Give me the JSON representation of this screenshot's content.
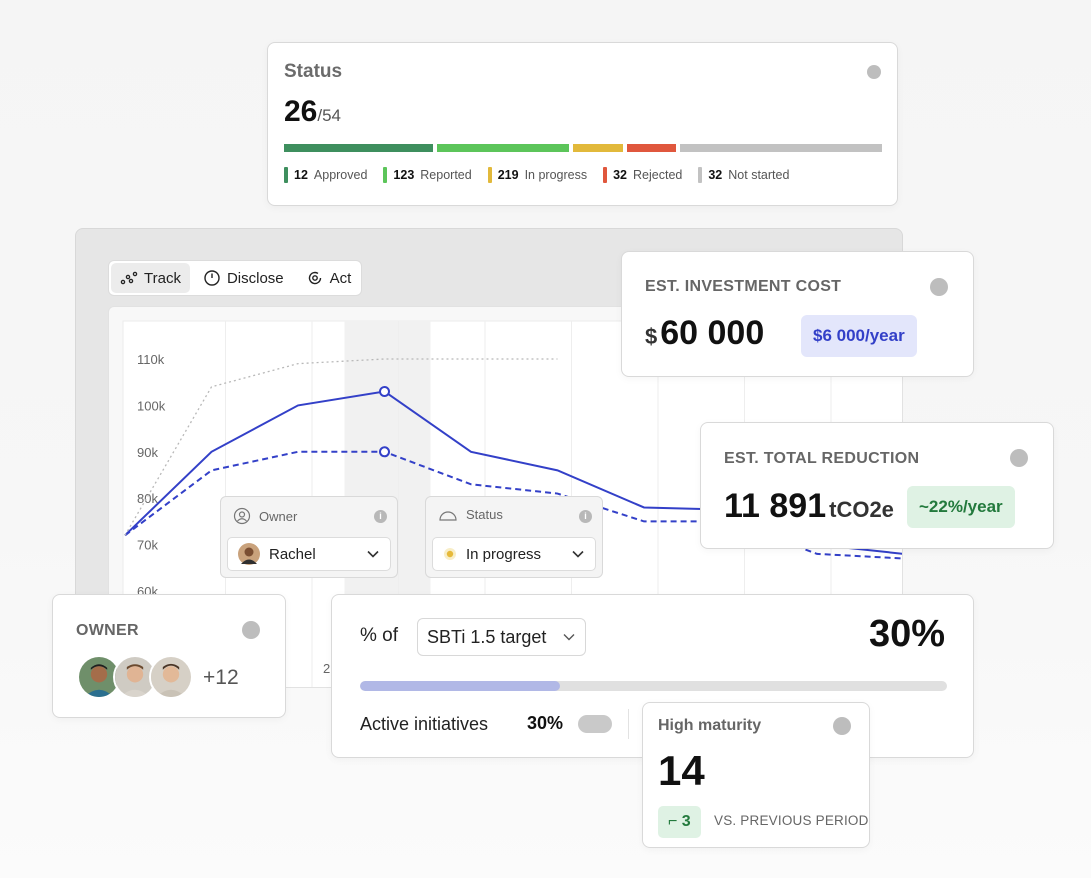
{
  "status_card": {
    "title": "Status",
    "current": "26",
    "total": "/54",
    "segments": [
      {
        "count": "12",
        "label": "Approved",
        "color": "#3e8f5e"
      },
      {
        "count": "123",
        "label": "Reported",
        "color": "#5cc55a"
      },
      {
        "count": "219",
        "label": "In progress",
        "color": "#e2b93b"
      },
      {
        "count": "32",
        "label": "Rejected",
        "color": "#e0573d"
      },
      {
        "count": "32",
        "label": "Not started",
        "color": "#c2c2c2"
      }
    ]
  },
  "tabs": [
    {
      "label": "Track",
      "icon": "track-icon",
      "active": true
    },
    {
      "label": "Disclose",
      "icon": "clock-icon",
      "active": false
    },
    {
      "label": "Act",
      "icon": "refresh-icon",
      "active": false
    }
  ],
  "chart_data": {
    "type": "line",
    "title": "",
    "xlabel": "",
    "ylabel": "",
    "y_ticks": [
      "110k",
      "100k",
      "90k",
      "80k",
      "70k",
      "60k"
    ],
    "ylim": [
      60000,
      110000
    ],
    "x_visible_tick_fragment": "2",
    "series": [
      {
        "style": "solid",
        "color": "#3340c8",
        "values": [
          72000,
          90000,
          100000,
          103000,
          90000,
          86000,
          78000,
          77500,
          70000,
          68000,
          66000
        ]
      },
      {
        "style": "dashed",
        "color": "#3340c8",
        "values": [
          72000,
          86000,
          90000,
          90000,
          83000,
          81000,
          75000,
          75000,
          68000,
          67000,
          65000
        ]
      },
      {
        "style": "dotted",
        "color": "#b8b8b8",
        "values": [
          72000,
          104000,
          109000,
          110000,
          110000,
          110000
        ]
      }
    ],
    "grid": true
  },
  "owner_select": {
    "header": "Owner",
    "value": "Rachel"
  },
  "status_select": {
    "header": "Status",
    "value": "In progress"
  },
  "investment_card": {
    "label": "EST. INVESTMENT COST",
    "currency": "$",
    "value": "60 000",
    "badge": "$6 000/year",
    "badge_color": "#3340c8"
  },
  "reduction_card": {
    "label": "EST. TOTAL REDUCTION",
    "value": "11 891",
    "unit": "tCO2e",
    "badge": "~22%/year",
    "badge_color": "#237a3d"
  },
  "owner_card": {
    "label": "OWNER",
    "extra": "+12"
  },
  "target_card": {
    "prefix": "% of",
    "target": "SBTi 1.5 target",
    "value": "30%",
    "progress": 0.34,
    "active_label": "Active initiatives",
    "active_value": "30%"
  },
  "maturity_card": {
    "label": "High maturity",
    "value": "14",
    "delta": "3",
    "comparison": "VS. PREVIOUS PERIOD"
  }
}
